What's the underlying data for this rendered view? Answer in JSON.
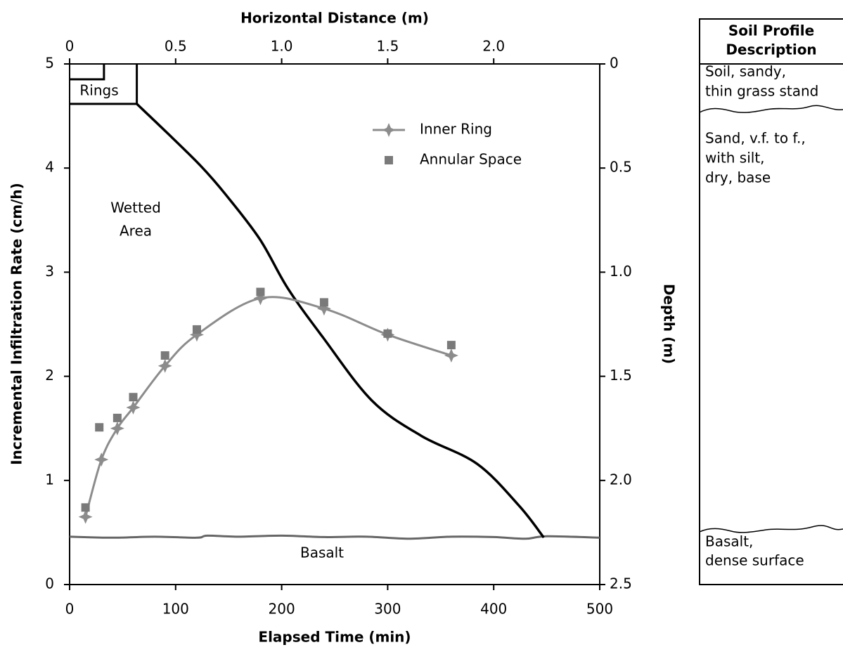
{
  "chart_data": {
    "type": "line",
    "x_label": "Elapsed Time (min)",
    "y_label": "Incremental Infiltration Rate (cm/h)",
    "x2_label": "Horizontal Distance (m)",
    "y2_label": "Depth (m)",
    "xlim": [
      0,
      500
    ],
    "xticks": [
      0,
      100,
      200,
      300,
      400,
      500
    ],
    "ylim": [
      0,
      5
    ],
    "yticks": [
      0,
      1,
      2,
      3,
      4,
      5
    ],
    "x2lim": [
      0,
      2.5
    ],
    "x2ticks": [
      0,
      0.5,
      {
        "value": 1,
        "label": "1.0"
      },
      {
        "value": 1.5,
        "label": "1.5"
      },
      {
        "value": 2,
        "label": "2.0"
      }
    ],
    "y2lim": [
      0,
      2.5
    ],
    "y2_inverted": true,
    "y2ticks": [
      0,
      0.5,
      {
        "value": 1,
        "label": "1.0"
      },
      {
        "value": 1.5,
        "label": "1.5"
      },
      {
        "value": 2,
        "label": "2.0"
      },
      2.5
    ],
    "series": [
      {
        "name": "Inner Ring",
        "color": "#8c8c8c",
        "marker": "star",
        "line": true,
        "x": [
          15,
          30,
          45,
          60,
          90,
          120,
          180,
          240,
          300,
          360
        ],
        "values": [
          0.65,
          1.2,
          1.5,
          1.7,
          2.1,
          2.4,
          2.75,
          2.65,
          2.4,
          2.2
        ]
      },
      {
        "name": "Annular Space",
        "color": "#7a7a7a",
        "marker": "square",
        "line": false,
        "x": [
          15,
          28,
          45,
          60,
          90,
          120,
          180,
          240,
          300,
          360
        ],
        "values": [
          0.74,
          1.51,
          1.6,
          1.8,
          2.2,
          2.45,
          2.81,
          2.71,
          2.41,
          2.3
        ]
      }
    ],
    "wetting_front": {
      "color": "#000000",
      "x": [
        0.317,
        0.456,
        0.615,
        0.731,
        0.896,
        1.028,
        1.194,
        1.425,
        1.657,
        1.921,
        2.12,
        2.236
      ],
      "values": [
        0.192,
        0.327,
        0.486,
        0.621,
        0.84,
        1.076,
        1.312,
        1.616,
        1.785,
        1.92,
        2.122,
        2.274
      ]
    },
    "basalt_surface": {
      "color": "#666666",
      "label": "Basalt",
      "x": [
        0,
        0.2,
        0.4,
        0.6,
        0.65,
        0.8,
        1.0,
        1.2,
        1.4,
        1.6,
        1.8,
        2.0,
        2.15,
        2.25,
        2.5
      ],
      "values": [
        2.27,
        2.275,
        2.27,
        2.275,
        2.265,
        2.27,
        2.265,
        2.272,
        2.27,
        2.28,
        2.27,
        2.272,
        2.28,
        2.268,
        2.275
      ]
    },
    "rings": {
      "label": "Rings",
      "inner": [
        0.162,
        0.074
      ],
      "outer": [
        0.317,
        0.192
      ]
    },
    "wetted_area_label": [
      "Wetted",
      "Area"
    ]
  },
  "soil_profile": {
    "title": [
      "Soil Profile",
      "Description"
    ],
    "layers": [
      {
        "lines": [
          "Soil, sandy,",
          "thin grass stand"
        ]
      },
      {
        "lines": [
          "Sand, v.f. to f.,",
          "with silt,",
          "dry, base"
        ]
      },
      {
        "lines": [
          "Basalt,",
          "dense surface"
        ]
      }
    ]
  }
}
